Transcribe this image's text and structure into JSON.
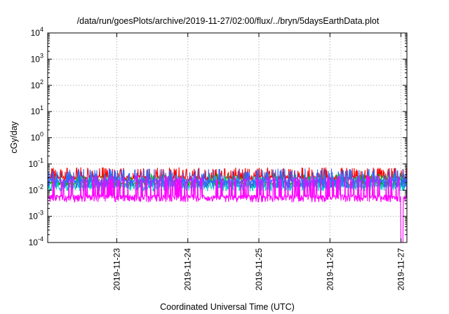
{
  "chart_data": {
    "type": "line",
    "title": "/data/run/goesPlots/archive/2019-11-27/02:00/flux/../bryn/5daysEarthData.plot",
    "xlabel": "Coordinated Universal Time (UTC)",
    "ylabel": "cGy/day",
    "yscale": "log",
    "ylim": [
      0.0001,
      10000
    ],
    "xlim": [
      "2019-11-22T00:40",
      "2019-11-27T02:00"
    ],
    "grid": true,
    "x_ticks": [
      "2019-11-23",
      "2019-11-24",
      "2019-11-25",
      "2019-11-26",
      "2019-11-27"
    ],
    "y_ticks": [
      {
        "base": "10",
        "exp": "4"
      },
      {
        "base": "10",
        "exp": "3"
      },
      {
        "base": "10",
        "exp": "2"
      },
      {
        "base": "10",
        "exp": "1"
      },
      {
        "base": "10",
        "exp": "0"
      },
      {
        "base": "10",
        "exp": "-1"
      },
      {
        "base": "10",
        "exp": "-2"
      },
      {
        "base": "10",
        "exp": "-3"
      },
      {
        "base": "10",
        "exp": "-4"
      }
    ],
    "series": [
      {
        "color": "#ff0000",
        "base": 0.03,
        "spike_high": 0.06,
        "spike_low": 0.022
      },
      {
        "color": "#00aa00",
        "base": 0.018,
        "spike_high": 0.035,
        "spike_low": 0.012
      },
      {
        "color": "#00cccc",
        "base": 0.014,
        "spike_high": 0.03,
        "spike_low": 0.009
      },
      {
        "color": "#3366ff",
        "base": 0.022,
        "spike_high": 0.055,
        "spike_low": 0.012
      },
      {
        "color": "#ff00ff",
        "base": 0.0055,
        "spike_high": 0.03,
        "spike_low": 0.0035,
        "dropout_x": "2019-11-27T00:15",
        "dropout_value": 0.0001
      }
    ]
  }
}
